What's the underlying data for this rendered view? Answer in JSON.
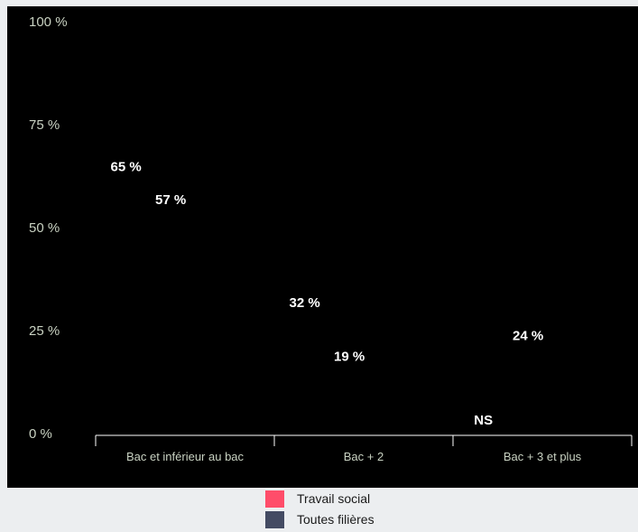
{
  "chart_data": {
    "type": "bar",
    "categories": [
      "Bac et inférieur au bac",
      "Bac + 2",
      "Bac + 3 et plus"
    ],
    "series": [
      {
        "name": "Travail social",
        "values": [
          65,
          32,
          null
        ],
        "labels": [
          "65 %",
          "32 %",
          "NS"
        ]
      },
      {
        "name": "Toutes filières",
        "values": [
          57,
          19,
          24
        ],
        "labels": [
          "57 %",
          "19 %",
          "24 %"
        ]
      }
    ],
    "ylim": [
      0,
      100
    ],
    "yticks": [
      0,
      25,
      50,
      75,
      100
    ],
    "ytick_labels": [
      "0 %",
      "25 %",
      "50 %",
      "75 %",
      "100 %"
    ],
    "title": "",
    "xlabel": "",
    "ylabel": "",
    "legend_position": "bottom",
    "colors": {
      "Travail social": "#ff4d6a",
      "Toutes filières": "#444b63"
    },
    "background": "#000000"
  }
}
